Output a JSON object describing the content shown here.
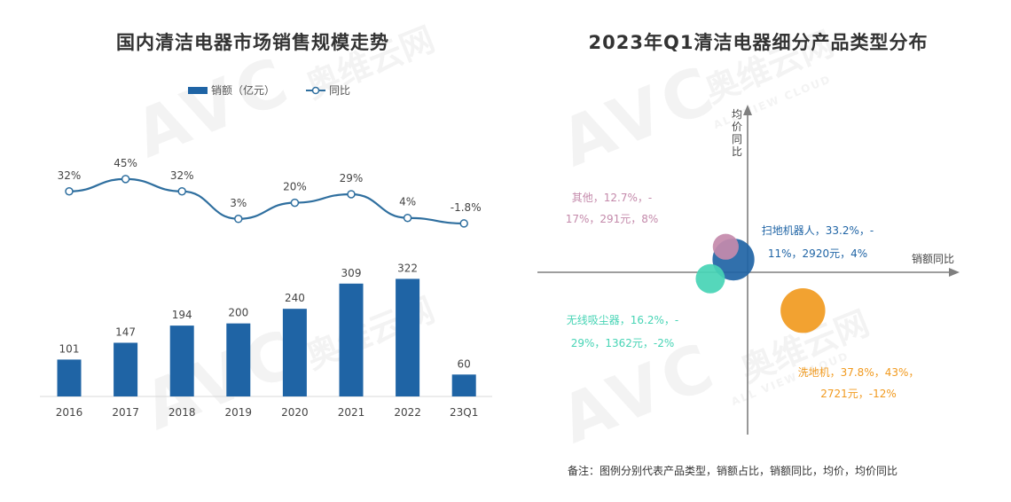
{
  "watermark": {
    "brand": "AVC",
    "cn": "奥维云网",
    "en": "ALL VIEW CLOUD"
  },
  "chart_data": [
    {
      "type": "bar",
      "title": "国内清洁电器市场销售规模走势",
      "categories": [
        "2016",
        "2017",
        "2018",
        "2019",
        "2020",
        "2021",
        "2022",
        "23Q1"
      ],
      "series": [
        {
          "name": "销额（亿元）",
          "type": "bar",
          "values": [
            101,
            147,
            194,
            200,
            240,
            309,
            322,
            60
          ],
          "labels": [
            "101",
            "147",
            "194",
            "200",
            "240",
            "309",
            "322",
            "60"
          ],
          "color": "#1f64a5"
        },
        {
          "name": "同比",
          "type": "line",
          "values": [
            32,
            45,
            32,
            3,
            20,
            29,
            4,
            -1.8
          ],
          "labels": [
            "32%",
            "45%",
            "32%",
            "3%",
            "20%",
            "29%",
            "4%",
            "-1.8%"
          ],
          "color": "#2f6f9f"
        }
      ],
      "ylim": [
        0,
        340
      ],
      "legend": "top-center",
      "grid": false
    },
    {
      "type": "scatter",
      "title": "2023年Q1清洁电器细分产品类型分布",
      "xlabel": "销额同比",
      "ylabel": "均价同比",
      "grid": false,
      "points": [
        {
          "name": "其他",
          "share": 12.7,
          "sales_yoy": -17,
          "avg_price": 291,
          "price_yoy": 8,
          "label_line1": "其他，12.7%，-",
          "label_line2": "17%，291元，8%",
          "color": "#c48aab"
        },
        {
          "name": "扫地机器人",
          "share": 33.2,
          "sales_yoy": -11,
          "avg_price": 2920,
          "price_yoy": 4,
          "label_line1": "扫地机器人，33.2%，-",
          "label_line2": "11%，2920元，4%",
          "color": "#1f64a5"
        },
        {
          "name": "无线吸尘器",
          "share": 16.2,
          "sales_yoy": -29,
          "avg_price": 1362,
          "price_yoy": -2,
          "label_line1": "无线吸尘器，16.2%，-",
          "label_line2": "29%，1362元，-2%",
          "color": "#47d4b5"
        },
        {
          "name": "洗地机",
          "share": 37.8,
          "sales_yoy": 43,
          "avg_price": 2721,
          "price_yoy": -12,
          "label_line1": "洗地机，37.8%，43%，",
          "label_line2": "2721元，-12%",
          "color": "#f19a1f"
        }
      ],
      "note": "备注：图例分别代表产品类型，销额占比，销额同比，均价，均价同比"
    }
  ]
}
